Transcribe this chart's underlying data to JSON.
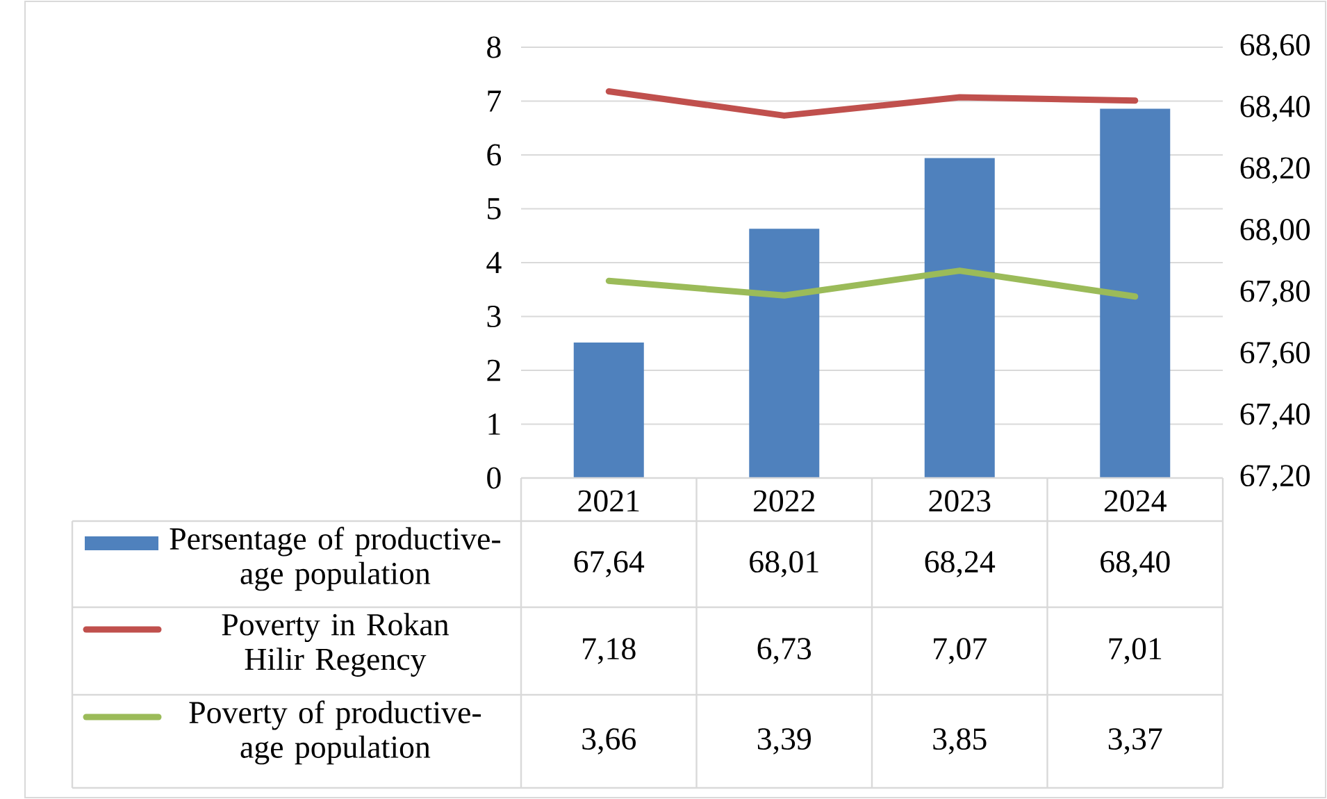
{
  "chart_data": {
    "type": "bar",
    "categories": [
      "2021",
      "2022",
      "2023",
      "2024"
    ],
    "series": [
      {
        "name": "Persentage of productive-age population",
        "axis": "y2",
        "color": "#4f81bd",
        "values": [
          67.64,
          68.01,
          68.24,
          68.4
        ],
        "value_labels": [
          "67,64",
          "68,01",
          "68,24",
          "68,40"
        ]
      },
      {
        "name": "Poverty in Rokan Hilir Regency",
        "type": "line",
        "color": "#c0504d",
        "values": [
          7.18,
          6.73,
          7.07,
          7.01
        ],
        "value_labels": [
          "7,18",
          "6,73",
          "7,07",
          "7,01"
        ]
      },
      {
        "name": "Poverty of productive-age population",
        "type": "line",
        "color": "#9bbb59",
        "values": [
          3.66,
          3.39,
          3.85,
          3.37
        ],
        "value_labels": [
          "3,66",
          "3,39",
          "3,85",
          "3,37"
        ]
      }
    ],
    "ylim": [
      0,
      8
    ],
    "yticks": [
      0,
      1,
      2,
      3,
      4,
      5,
      6,
      7,
      8
    ],
    "y2lim": [
      67.2,
      68.6
    ],
    "y2ticks": [
      {
        "value": 67.2,
        "label": "67,20"
      },
      {
        "value": 67.4,
        "label": "67,40"
      },
      {
        "value": 67.6,
        "label": "67,60"
      },
      {
        "value": 67.8,
        "label": "67,80"
      },
      {
        "value": 68.0,
        "label": "68,00"
      },
      {
        "value": 68.2,
        "label": "68,20"
      },
      {
        "value": 68.4,
        "label": "68,40"
      },
      {
        "value": 68.6,
        "label": "68,60"
      }
    ],
    "grid": "y",
    "legend": "bottom",
    "marker": "none",
    "line_style": "solid"
  }
}
